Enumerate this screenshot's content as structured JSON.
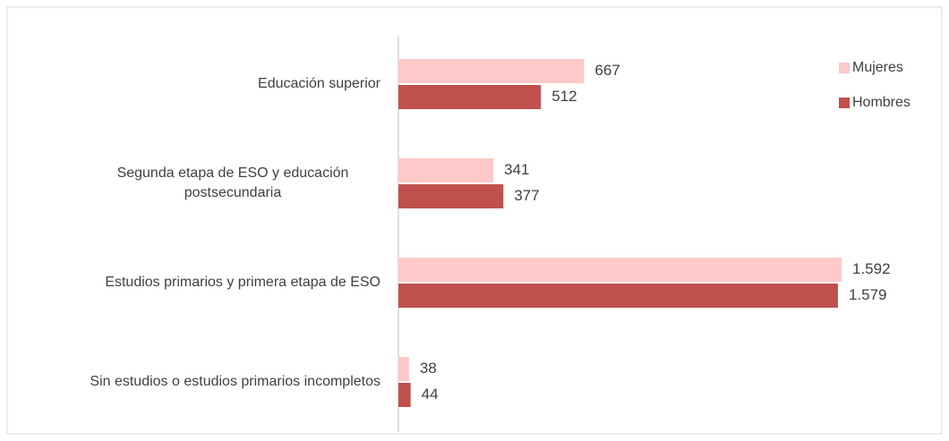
{
  "chart_data": {
    "type": "bar",
    "orientation": "horizontal",
    "categories": [
      "Educación superior",
      "Segunda etapa de ESO y educación postsecundaria",
      "Estudios primarios y primera etapa de ESO",
      "Sin estudios o estudios primarios incompletos"
    ],
    "series": [
      {
        "name": "Mujeres",
        "color": "#ffc9c9",
        "values": [
          667,
          341,
          1592,
          38
        ],
        "value_labels": [
          "667",
          "341",
          "1.592",
          "38"
        ]
      },
      {
        "name": "Hombres",
        "color": "#c0504d",
        "values": [
          512,
          377,
          1579,
          44
        ],
        "value_labels": [
          "512",
          "377",
          "1.579",
          "44"
        ]
      }
    ],
    "legend": "right"
  }
}
